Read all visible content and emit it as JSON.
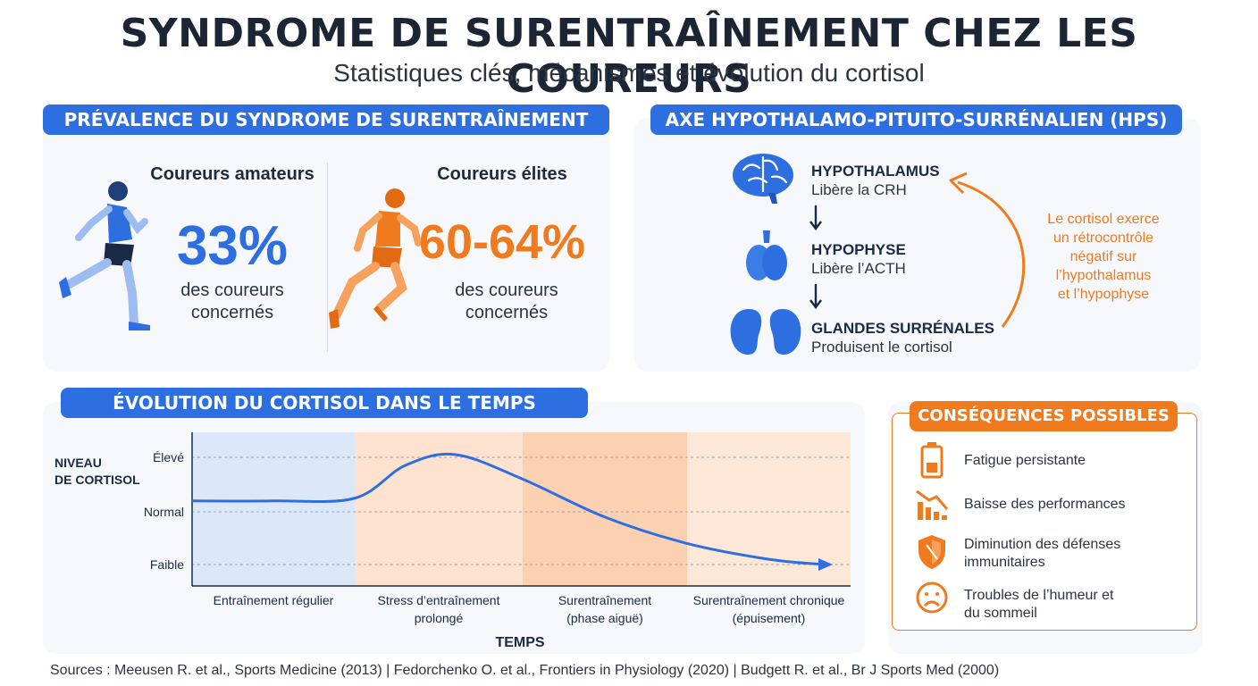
{
  "title": "SYNDROME DE SURENTRAÎNEMENT CHEZ LES COUREURS",
  "subtitle": "Statistiques clés, mécanismes et évolution du cortisol",
  "prevalence": {
    "heading": "PRÉVALENCE DU SYNDROME DE SURENTRAÎNEMENT",
    "amateur": {
      "label": "Coureurs amateurs",
      "value": "33%",
      "caption_line1": "des coureurs",
      "caption_line2": "concernés",
      "color": "#2d6fe0",
      "icon": "runner-blue-icon"
    },
    "elite": {
      "label": "Coureurs élites",
      "value": "60-64%",
      "caption_line1": "des coureurs",
      "caption_line2": "concernés",
      "color": "#f07a1e",
      "icon": "runner-orange-icon"
    }
  },
  "hps": {
    "heading": "AXE HYPOTHALAMO-PITUITO-SURRÉNALIEN (HPS)",
    "steps": [
      {
        "name": "HYPOTHALAMUS",
        "desc": "Libère la CRH",
        "icon": "brain-icon"
      },
      {
        "name": "HYPOPHYSE",
        "desc": "Libère l’ACTH",
        "icon": "pituitary-icon"
      },
      {
        "name": "GLANDES SURRÉNALES",
        "desc": "Produisent le cortisol",
        "icon": "kidneys-icon"
      }
    ],
    "feedback_lines": [
      "Le cortisol exerce",
      "un rétrocontrôle",
      "négatif sur",
      "l’hypothalamus",
      "et l’hypophyse"
    ]
  },
  "cortisol": {
    "heading": "ÉVOLUTION DU CORTISOL DANS LE TEMPS",
    "y_axis_line1": "NIVEAU",
    "y_axis_line2": "DE CORTISOL",
    "y_levels": [
      "Élevé",
      "Normal",
      "Faible"
    ],
    "x_axis": "TEMPS",
    "phases": [
      {
        "line1": "Entraînement régulier",
        "line2": "",
        "color": "#dce8f9"
      },
      {
        "line1": "Stress d’entraînement",
        "line2": "prolongé",
        "color": "#fde3cf"
      },
      {
        "line1": "Surentraînement",
        "line2": "(phase aiguë)",
        "color": "#fbd1b1"
      },
      {
        "line1": "Surentraînement chronique",
        "line2": "(épuisement)",
        "color": "#fde8d8"
      }
    ]
  },
  "chart_data": {
    "type": "line",
    "y_categories": [
      "Faible",
      "Normal",
      "Élevé"
    ],
    "xlabel": "TEMPS",
    "ylabel": "NIVEAU DE CORTISOL",
    "x": [
      0,
      0.5,
      1.0,
      1.3,
      1.6,
      2.0,
      2.5,
      3.0,
      3.5,
      4.0
    ],
    "values": [
      1.2,
      1.2,
      1.25,
      1.85,
      2.05,
      1.6,
      0.9,
      0.4,
      0.1,
      0.0
    ],
    "ylim": [
      0,
      2
    ],
    "series_color": "#2d6fe0"
  },
  "consequences": {
    "heading": "CONSÉQUENCES POSSIBLES",
    "items": [
      {
        "line1": "Fatigue persistante",
        "line2": "",
        "icon": "battery-icon"
      },
      {
        "line1": "Baisse des performances",
        "line2": "",
        "icon": "declining-chart-icon"
      },
      {
        "line1": "Diminution des défenses",
        "line2": "immunitaires",
        "icon": "shield-icon"
      },
      {
        "line1": "Troubles de l’humeur et",
        "line2": "du sommeil",
        "icon": "sad-face-icon"
      }
    ]
  },
  "sources": "Sources : Meeusen R. et al., Sports Medicine (2013) | Fedorchenko O. et al., Frontiers in Physiology (2020) | Budgett R. et al., Br J Sports Med (2000)"
}
